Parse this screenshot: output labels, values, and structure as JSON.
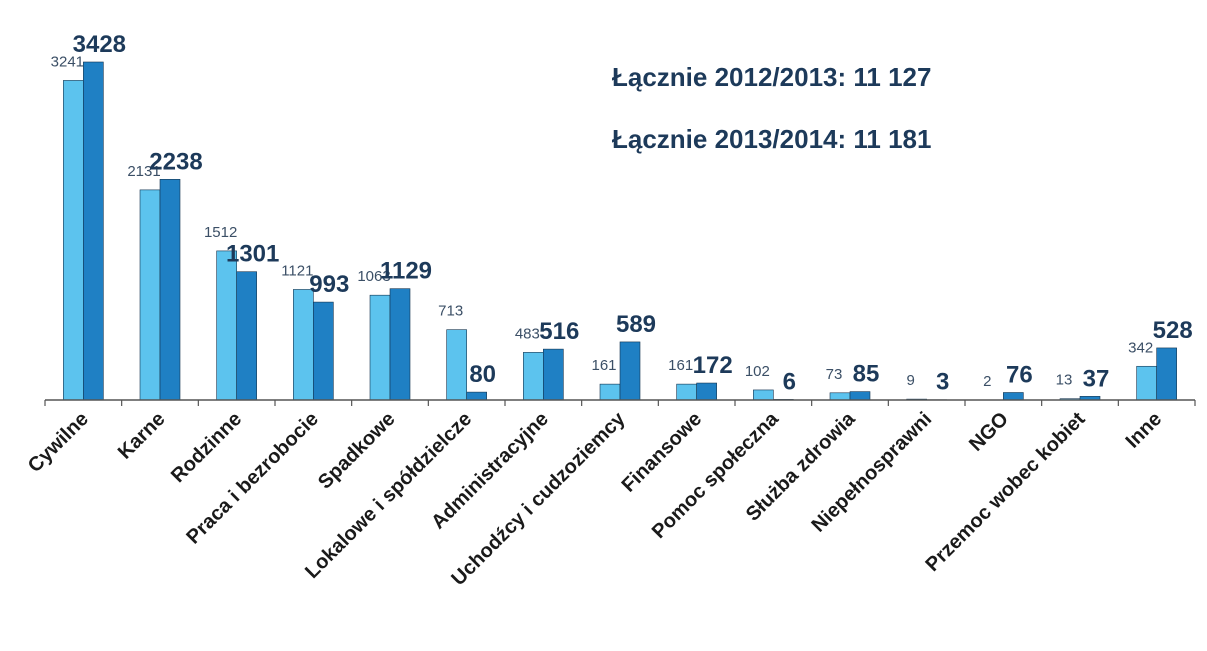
{
  "chart_data": {
    "type": "bar",
    "annotations": [
      "Łącznie 2012/2013: 11 127",
      "Łącznie 2013/2014: 11 181"
    ],
    "categories": [
      "Cywilne",
      "Karne",
      "Rodzinne",
      "Praca i bezrobocie",
      "Spadkowe",
      "Lokalowe i spółdzielcze",
      "Administracyjne",
      "Uchodźcy i cudzoziemcy",
      "Finansowe",
      "Pomoc społeczna",
      "Służba zdrowia",
      "Niepełnosprawni",
      "NGO",
      "Przemoc wobec kobiet",
      "Inne"
    ],
    "series": [
      {
        "color": "#5cc3ee",
        "values": [
          3241,
          2131,
          1512,
          1121,
          1063,
          713,
          483,
          161,
          161,
          102,
          73,
          9,
          2,
          13,
          342
        ]
      },
      {
        "color": "#1f80c4",
        "values": [
          3428,
          2238,
          1301,
          993,
          1129,
          80,
          516,
          589,
          172,
          6,
          85,
          3,
          76,
          37,
          528
        ]
      }
    ]
  }
}
